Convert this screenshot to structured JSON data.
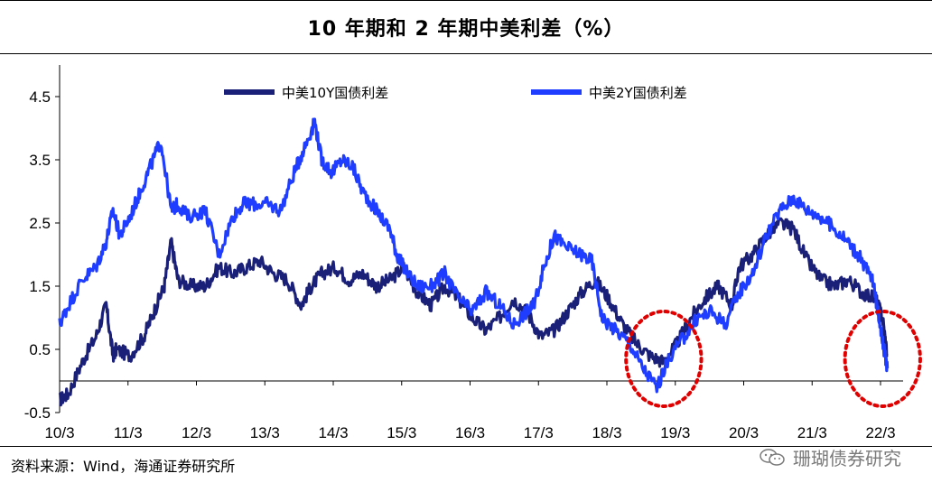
{
  "title": "10 年期和 2 年期中美利差（%）",
  "source": "资料来源：Wind，海通证券研究所",
  "watermark": "珊瑚债券研究",
  "chart_data": {
    "type": "line",
    "ylim": [
      -0.5,
      5.0
    ],
    "yticks": [
      -0.5,
      0.5,
      1.5,
      2.5,
      3.5,
      4.5
    ],
    "ytick_labels": [
      "-0.5",
      "0.5",
      "1.5",
      "2.5",
      "3.5",
      "4.5"
    ],
    "xlim": [
      2010.17,
      2022.5
    ],
    "xticks": [
      2010.17,
      2011.17,
      2012.17,
      2013.17,
      2014.17,
      2015.17,
      2016.17,
      2017.17,
      2018.17,
      2019.17,
      2020.17,
      2021.17,
      2022.17
    ],
    "xtick_labels": [
      "10/3",
      "11/3",
      "12/3",
      "13/3",
      "14/3",
      "15/3",
      "16/3",
      "17/3",
      "18/3",
      "19/3",
      "20/3",
      "21/3",
      "22/3"
    ],
    "legend_position": "top",
    "grid": false,
    "series": [
      {
        "name": "中美10Y国债利差",
        "color": "#1a1f78",
        "x": [
          2010.17,
          2010.3,
          2010.5,
          2010.7,
          2010.85,
          2010.95,
          2011.0,
          2011.2,
          2011.4,
          2011.55,
          2011.7,
          2011.8,
          2011.9,
          2012.1,
          2012.3,
          2012.5,
          2012.7,
          2012.9,
          2013.1,
          2013.3,
          2013.5,
          2013.7,
          2013.85,
          2014.0,
          2014.2,
          2014.4,
          2014.6,
          2014.8,
          2015.0,
          2015.2,
          2015.4,
          2015.6,
          2015.8,
          2016.0,
          2016.2,
          2016.4,
          2016.6,
          2016.8,
          2017.0,
          2017.2,
          2017.4,
          2017.6,
          2017.8,
          2018.0,
          2018.2,
          2018.4,
          2018.6,
          2018.8,
          2019.0,
          2019.2,
          2019.4,
          2019.6,
          2019.8,
          2020.0,
          2020.1,
          2020.3,
          2020.5,
          2020.7,
          2020.9,
          2021.1,
          2021.3,
          2021.5,
          2021.7,
          2021.9,
          2022.1,
          2022.2,
          2022.27
        ],
        "values": [
          -0.3,
          -0.2,
          0.3,
          0.7,
          1.2,
          0.4,
          0.5,
          0.4,
          0.7,
          1.1,
          1.5,
          2.2,
          1.6,
          1.5,
          1.5,
          1.8,
          1.7,
          1.8,
          1.9,
          1.7,
          1.6,
          1.2,
          1.5,
          1.7,
          1.8,
          1.6,
          1.7,
          1.5,
          1.6,
          1.8,
          1.4,
          1.2,
          1.5,
          1.3,
          1.0,
          0.8,
          1.0,
          1.3,
          1.1,
          0.7,
          0.8,
          1.1,
          1.4,
          1.6,
          1.3,
          0.9,
          0.6,
          0.4,
          0.3,
          0.6,
          1.0,
          1.3,
          1.5,
          1.2,
          1.8,
          2.0,
          2.3,
          2.5,
          2.4,
          1.9,
          1.6,
          1.5,
          1.6,
          1.4,
          1.3,
          1.0,
          0.4
        ]
      },
      {
        "name": "中美2Y国债利差",
        "color": "#1f3dff",
        "x": [
          2010.17,
          2010.3,
          2010.5,
          2010.7,
          2010.85,
          2010.95,
          2011.05,
          2011.2,
          2011.35,
          2011.5,
          2011.65,
          2011.8,
          2011.9,
          2012.05,
          2012.3,
          2012.5,
          2012.7,
          2012.85,
          2013.0,
          2013.2,
          2013.4,
          2013.6,
          2013.75,
          2013.9,
          2014.0,
          2014.15,
          2014.3,
          2014.45,
          2014.6,
          2014.8,
          2015.0,
          2015.1,
          2015.2,
          2015.4,
          2015.6,
          2015.8,
          2016.0,
          2016.2,
          2016.4,
          2016.6,
          2016.8,
          2017.0,
          2017.1,
          2017.25,
          2017.4,
          2017.6,
          2017.8,
          2017.95,
          2018.1,
          2018.3,
          2018.5,
          2018.7,
          2018.9,
          2019.1,
          2019.3,
          2019.5,
          2019.7,
          2019.9,
          2020.1,
          2020.3,
          2020.5,
          2020.7,
          2020.9,
          2021.1,
          2021.3,
          2021.5,
          2021.7,
          2021.9,
          2022.05,
          2022.15,
          2022.22,
          2022.27
        ],
        "values": [
          0.9,
          1.2,
          1.6,
          1.8,
          2.2,
          2.7,
          2.3,
          2.6,
          3.0,
          3.4,
          3.8,
          2.7,
          2.8,
          2.6,
          2.7,
          2.0,
          2.6,
          2.8,
          2.8,
          2.8,
          2.7,
          3.3,
          3.7,
          4.1,
          3.5,
          3.3,
          3.5,
          3.4,
          3.0,
          2.7,
          2.4,
          2.0,
          1.8,
          1.5,
          1.5,
          1.7,
          1.3,
          1.1,
          1.4,
          1.2,
          0.9,
          1.1,
          1.2,
          1.8,
          2.3,
          2.1,
          2.0,
          1.9,
          1.0,
          0.8,
          0.6,
          0.2,
          -0.1,
          0.4,
          0.7,
          1.0,
          1.1,
          0.9,
          1.4,
          1.7,
          2.3,
          2.7,
          2.9,
          2.7,
          2.6,
          2.4,
          2.2,
          1.9,
          1.6,
          1.0,
          0.5,
          0.2
        ]
      }
    ],
    "annotations": [
      {
        "type": "dashed-ellipse",
        "color": "#e00000",
        "cx": 2019.0,
        "cy": 0.35,
        "rx": 0.55,
        "ry": 0.75
      },
      {
        "type": "dashed-ellipse",
        "color": "#e00000",
        "cx": 2022.2,
        "cy": 0.35,
        "rx": 0.55,
        "ry": 0.75
      }
    ]
  }
}
